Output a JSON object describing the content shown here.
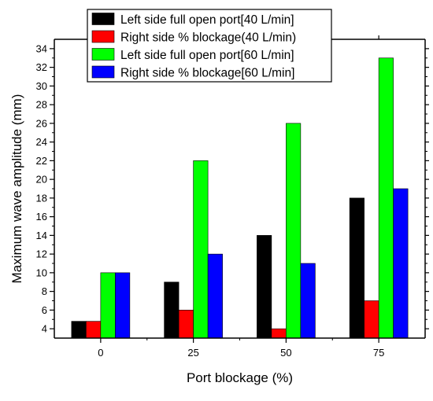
{
  "chart_data": {
    "type": "bar",
    "title": "",
    "xlabel": "Port blockage (%)",
    "ylabel": "Maximum wave amplitude (mm)",
    "categories": [
      "0",
      "25",
      "50",
      "75"
    ],
    "ylim": [
      3,
      35
    ],
    "yticks": [
      4,
      6,
      8,
      10,
      12,
      14,
      16,
      18,
      20,
      22,
      24,
      26,
      28,
      30,
      32,
      34
    ],
    "grid": false,
    "legend_position": "top-center",
    "series": [
      {
        "name": "Left side full open port[40 L/min]",
        "color": "#000000",
        "values": [
          4.8,
          9,
          14,
          18
        ]
      },
      {
        "name": "Right side % blockage(40 L/min)",
        "color": "#ff0000",
        "values": [
          4.8,
          6,
          4,
          7
        ]
      },
      {
        "name": "Left side full open port[60 L/min]",
        "color": "#00ff00",
        "values": [
          10,
          22,
          26,
          33
        ]
      },
      {
        "name": "Right side % blockage[60 L/min]",
        "color": "#0000ff",
        "values": [
          10,
          12,
          11,
          19
        ]
      }
    ]
  }
}
